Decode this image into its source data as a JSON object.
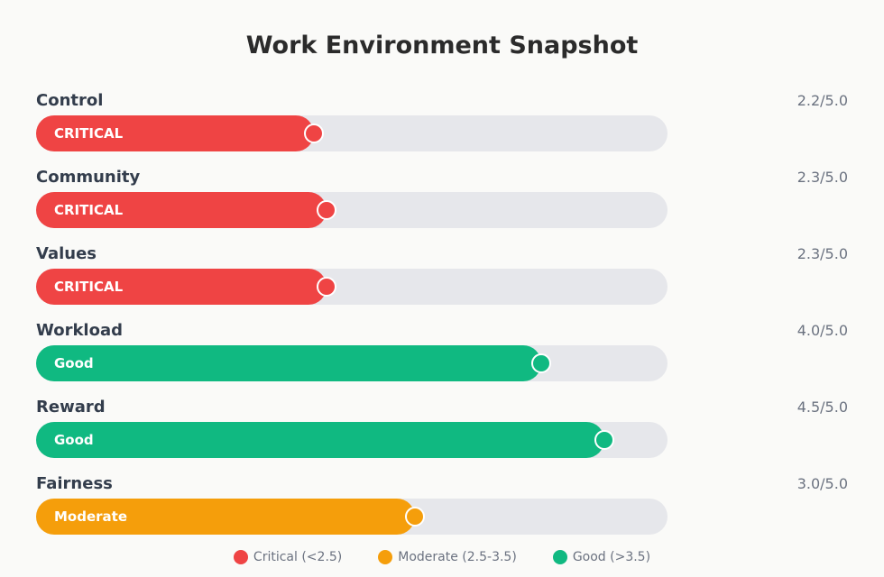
{
  "chart_data": {
    "type": "bar",
    "title": "Work Environment Snapshot",
    "xlim": [
      0,
      5
    ],
    "categories": [
      "Control",
      "Community",
      "Values",
      "Workload",
      "Reward",
      "Fairness"
    ],
    "values": [
      2.2,
      2.3,
      2.3,
      4.0,
      4.5,
      3.0
    ],
    "score_labels": [
      "2.2/5.0",
      "2.3/5.0",
      "2.3/5.0",
      "4.0/5.0",
      "4.5/5.0",
      "3.0/5.0"
    ],
    "status_labels": [
      "CRITICAL",
      "CRITICAL",
      "CRITICAL",
      "Good",
      "Good",
      "Moderate"
    ],
    "bar_colors": [
      "#ef4444",
      "#ef4444",
      "#ef4444",
      "#10b981",
      "#10b981",
      "#f59e0b"
    ],
    "legend": {
      "position": "bottom",
      "items": [
        {
          "label": "Critical (<2.5)",
          "color": "#ef4444"
        },
        {
          "label": "Moderate (2.5-3.5)",
          "color": "#f59e0b"
        },
        {
          "label": "Good (>3.5)",
          "color": "#10b981"
        }
      ]
    }
  }
}
